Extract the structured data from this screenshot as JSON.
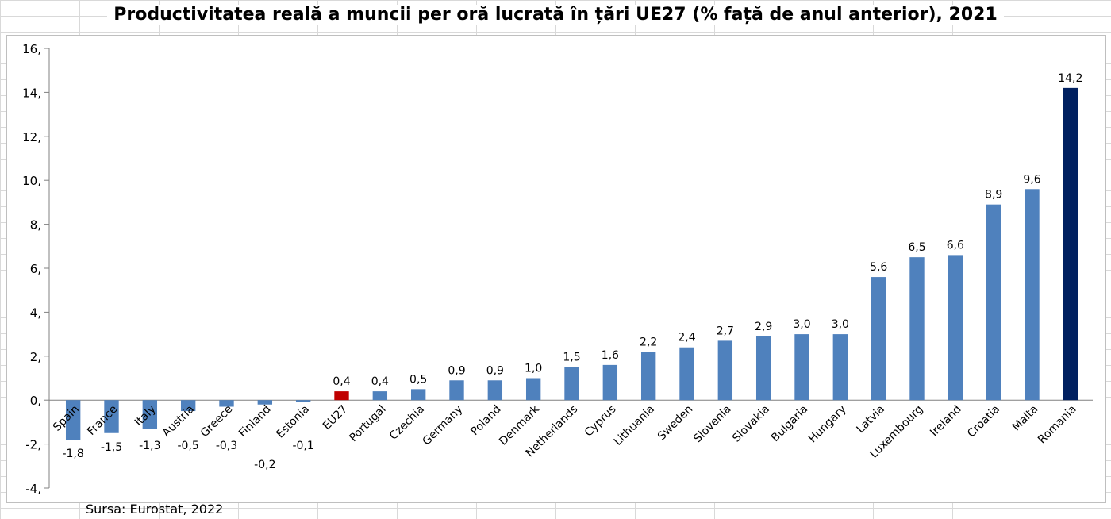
{
  "title": "Productivitatea reală a muncii per oră lucrată în țări UE27 (% față de anul anterior), 2021",
  "source": "Sursa: Eurostat, 2022",
  "colors": {
    "default": "#4f81bd",
    "eu27": "#c00000",
    "romania": "#002060"
  },
  "chart_data": {
    "type": "bar",
    "title": "Productivitatea reală a muncii per oră lucrată în țări UE27 (% față de anul anterior), 2021",
    "xlabel": "",
    "ylabel": "",
    "ylim": [
      -4,
      16
    ],
    "yticks": [
      "16,",
      "14,",
      "12,",
      "10,",
      "8,",
      "6,",
      "4,",
      "2,",
      "0,",
      "-2,",
      "-4,"
    ],
    "ytick_values": [
      16,
      14,
      12,
      10,
      8,
      6,
      4,
      2,
      0,
      -2,
      -4
    ],
    "categories": [
      "Spain",
      "France",
      "Italy",
      "Austria",
      "Greece",
      "Finland",
      "Estonia",
      "EU27",
      "Portugal",
      "Czechia",
      "Germany",
      "Poland",
      "Denmark",
      "Netherlands",
      "Cyprus",
      "Lithuania",
      "Sweden",
      "Slovenia",
      "Slovakia",
      "Bulgaria",
      "Hungary",
      "Latvia",
      "Luxembourg",
      "Ireland",
      "Croatia",
      "Malta",
      "Romania"
    ],
    "values": [
      -1.8,
      -1.5,
      -1.3,
      -0.5,
      -0.3,
      -0.2,
      -0.1,
      0.4,
      0.4,
      0.5,
      0.9,
      0.9,
      1.0,
      1.5,
      1.6,
      2.2,
      2.4,
      2.7,
      2.9,
      3.0,
      3.0,
      5.6,
      6.5,
      6.6,
      8.9,
      9.6,
      14.2
    ],
    "labels": [
      "-1,8",
      "-1,5",
      "-1,3",
      "-0,5",
      "-0,3",
      "-0,2",
      "-0,1",
      "0,4",
      "0,4",
      "0,5",
      "0,9",
      "0,9",
      "1,0",
      "1,5",
      "1,6",
      "2,2",
      "2,4",
      "2,7",
      "2,9",
      "3,0",
      "3,0",
      "5,6",
      "6,5",
      "6,6",
      "8,9",
      "9,6",
      "14,2"
    ],
    "highlight": {
      "EU27": "eu27",
      "Romania": "romania"
    },
    "grid": false,
    "legend": "none"
  }
}
